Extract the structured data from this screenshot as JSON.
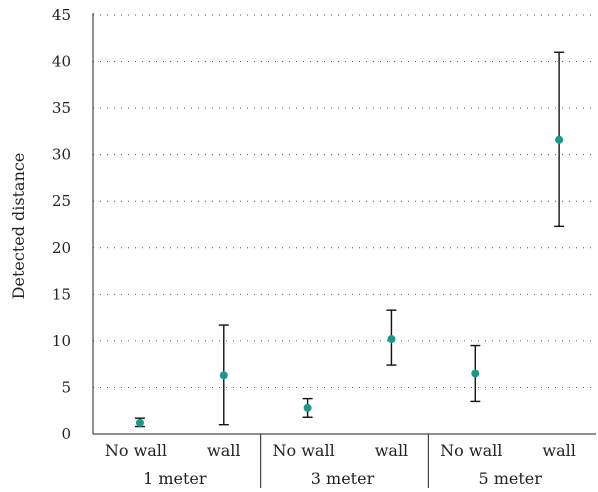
{
  "chart_data": {
    "type": "scatter",
    "title": "",
    "xlabel": "",
    "ylabel": "Detected distance",
    "ylim": [
      0,
      45
    ],
    "yticks": [
      0,
      5,
      10,
      15,
      20,
      25,
      30,
      35,
      40,
      45
    ],
    "grid": true,
    "groups": [
      {
        "label": "1 meter",
        "categories": [
          "No wall",
          "wall"
        ]
      },
      {
        "label": "3 meter",
        "categories": [
          "No wall",
          "wall"
        ]
      },
      {
        "label": "5 meter",
        "categories": [
          "No wall",
          "wall"
        ]
      }
    ],
    "points": [
      {
        "group": "1 meter",
        "category": "No wall",
        "mean": 1.2,
        "low": 0.8,
        "high": 1.7
      },
      {
        "group": "1 meter",
        "category": "wall",
        "mean": 6.3,
        "low": 1.0,
        "high": 11.7
      },
      {
        "group": "3 meter",
        "category": "No wall",
        "mean": 2.8,
        "low": 1.8,
        "high": 3.8
      },
      {
        "group": "3 meter",
        "category": "wall",
        "mean": 10.2,
        "low": 7.4,
        "high": 13.3
      },
      {
        "group": "5 meter",
        "category": "No wall",
        "mean": 6.5,
        "low": 3.5,
        "high": 9.5
      },
      {
        "group": "5 meter",
        "category": "wall",
        "mean": 31.6,
        "low": 22.3,
        "high": 41.0
      }
    ],
    "marker_color": "#1a9a86"
  }
}
